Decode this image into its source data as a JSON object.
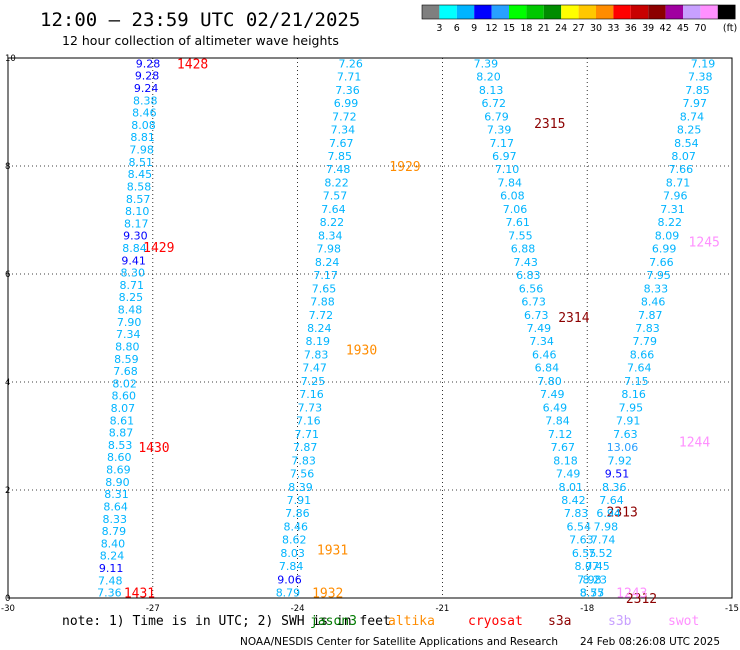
{
  "title": "12:00 – 23:59 UTC 02/21/2025",
  "subtitle": "12 hour collection of altimeter wave heights",
  "colorbar": {
    "unit": "(ft)",
    "labels": [
      "3",
      "6",
      "9",
      "12",
      "15",
      "18",
      "21",
      "24",
      "27",
      "30",
      "33",
      "36",
      "39",
      "42",
      "45",
      "70"
    ],
    "colors": [
      "#7f7f7f",
      "#00ffff",
      "#00b4ff",
      "#0000ff",
      "#28a0ff",
      "#00ff00",
      "#00c800",
      "#008c00",
      "#ffff00",
      "#ffc800",
      "#ff8c00",
      "#ff0000",
      "#c80000",
      "#8c0000",
      "#a000a0",
      "#c8a0ff",
      "#ff90ff",
      "#000000"
    ]
  },
  "note": "note: 1) Time is in UTC; 2) SWH is in feet",
  "legend": [
    {
      "name": "jason3",
      "color": "#007a00"
    },
    {
      "name": "altika",
      "color": "#ff8c00"
    },
    {
      "name": "cryosat",
      "color": "#ff0000"
    },
    {
      "name": "s3a",
      "color": "#8c0000"
    },
    {
      "name": "s3b",
      "color": "#c8a0ff"
    },
    {
      "name": "swot",
      "color": "#ff90ff"
    }
  ],
  "footer": {
    "credit": "NOAA/NESDIS Center for Satellite Applications and Research",
    "timestamp": "24 Feb 08:26:08 UTC 2025"
  },
  "axes": {
    "x_ticks": [
      -30,
      -27,
      -24,
      -21,
      -18,
      -15
    ],
    "y_ticks": [
      0,
      2,
      4,
      6,
      8,
      10
    ]
  },
  "tracks": [
    {
      "name": "track-1",
      "start": [
        -27.1,
        9.9
      ],
      "end": [
        -27.9,
        0.1
      ],
      "values": [
        "9.28",
        "9.28",
        "9.24",
        "8.38",
        "8.46",
        "8.08",
        "8.81",
        "7.98",
        "8.51",
        "8.45",
        "8.58",
        "8.57",
        "8.10",
        "8.17",
        "9.30",
        "8.84",
        "9.41",
        "8.30",
        "8.71",
        "8.25",
        "8.48",
        "7.90",
        "7.34",
        "8.80",
        "8.59",
        "7.68",
        "8.02",
        "8.60",
        "8.07",
        "8.61",
        "8.87",
        "8.53",
        "8.60",
        "8.69",
        "8.90",
        "8.31",
        "8.64",
        "8.33",
        "8.79",
        "8.40",
        "8.24",
        "9.11",
        "7.48",
        "7.36"
      ],
      "passes": [
        {
          "label": "1428",
          "color": "#ff0000",
          "at": [
            -26.5,
            9.9
          ]
        },
        {
          "label": "1429",
          "color": "#ff0000",
          "at": [
            -27.2,
            6.5
          ]
        },
        {
          "label": "1430",
          "color": "#ff0000",
          "at": [
            -27.3,
            2.8
          ]
        },
        {
          "label": "1431",
          "color": "#ff0000",
          "at": [
            -27.6,
            0.1
          ]
        }
      ]
    },
    {
      "name": "track-2",
      "start": [
        -22.9,
        9.9
      ],
      "end": [
        -24.2,
        0.1
      ],
      "values": [
        "7.26",
        "7.71",
        "7.36",
        "6.99",
        "7.72",
        "7.34",
        "7.67",
        "7.85",
        "7.48",
        "8.22",
        "7.57",
        "7.64",
        "8.22",
        "8.34",
        "7.98",
        "8.24",
        "7.17",
        "7.65",
        "7.88",
        "7.72",
        "8.24",
        "8.19",
        "7.83",
        "7.47",
        "7.25",
        "7.16",
        "7.73",
        "7.16",
        "7.71",
        "7.87",
        "7.83",
        "7.56",
        "8.39",
        "7.91",
        "7.86",
        "8.46",
        "8.62",
        "8.03",
        "7.84",
        "9.06",
        "8.79"
      ],
      "passes": [
        {
          "label": "1929",
          "color": "#ff8c00",
          "at": [
            -22.1,
            8.0
          ]
        },
        {
          "label": "1930",
          "color": "#ff8c00",
          "at": [
            -23.0,
            4.6
          ]
        },
        {
          "label": "1931",
          "color": "#ff8c00",
          "at": [
            -23.6,
            0.9
          ]
        },
        {
          "label": "1932",
          "color": "#ff8c00",
          "at": [
            -23.7,
            0.1
          ]
        }
      ]
    },
    {
      "name": "track-3",
      "start": [
        -20.1,
        9.9
      ],
      "end": [
        -17.9,
        0.1
      ],
      "values": [
        "7.39",
        "8.20",
        "8.13",
        "6.72",
        "6.79",
        "7.39",
        "7.17",
        "6.97",
        "7.10",
        "7.84",
        "6.08",
        "7.06",
        "7.61",
        "7.55",
        "6.88",
        "7.43",
        "6.83",
        "6.56",
        "6.73",
        "6.73",
        "7.49",
        "7.34",
        "6.46",
        "6.84",
        "7.80",
        "7.49",
        "6.49",
        "7.84",
        "7.12",
        "7.67",
        "8.18",
        "7.49",
        "8.01",
        "8.42",
        "7.83",
        "6.54",
        "7.63",
        "6.55",
        "8.07",
        "7.98",
        "8.55"
      ],
      "passes": [
        {
          "label": "2315",
          "color": "#8c0000",
          "at": [
            -19.1,
            8.8
          ]
        },
        {
          "label": "2314",
          "color": "#8c0000",
          "at": [
            -18.6,
            5.2
          ]
        },
        {
          "label": "2313",
          "color": "#8c0000",
          "at": [
            -17.6,
            1.6
          ]
        },
        {
          "label": "2312",
          "color": "#8c0000",
          "at": [
            -17.2,
            0.0
          ]
        }
      ]
    },
    {
      "name": "track-4",
      "start": [
        -15.6,
        9.9
      ],
      "end": [
        -17.9,
        0.1
      ],
      "values": [
        "7.19",
        "7.38",
        "7.85",
        "7.97",
        "8.74",
        "8.25",
        "8.54",
        "8.07",
        "7.66",
        "8.71",
        "7.96",
        "7.31",
        "8.22",
        "8.09",
        "6.99",
        "7.66",
        "7.95",
        "8.33",
        "8.46",
        "7.87",
        "7.83",
        "7.79",
        "8.66",
        "7.64",
        "7.15",
        "8.16",
        "7.95",
        "7.91",
        "7.63",
        "13.06",
        "7.92",
        "9.51",
        "8.36",
        "7.64",
        "6.94",
        "7.98",
        "7.74",
        "7.52",
        "7.45",
        "8.23",
        "8.77"
      ],
      "passes": [
        {
          "label": "1245",
          "color": "#ff90ff",
          "at": [
            -15.9,
            6.6
          ]
        },
        {
          "label": "1244",
          "color": "#ff90ff",
          "at": [
            -16.1,
            2.9
          ]
        },
        {
          "label": "1243",
          "color": "#ff90ff",
          "at": [
            -17.4,
            0.1
          ]
        }
      ]
    }
  ]
}
